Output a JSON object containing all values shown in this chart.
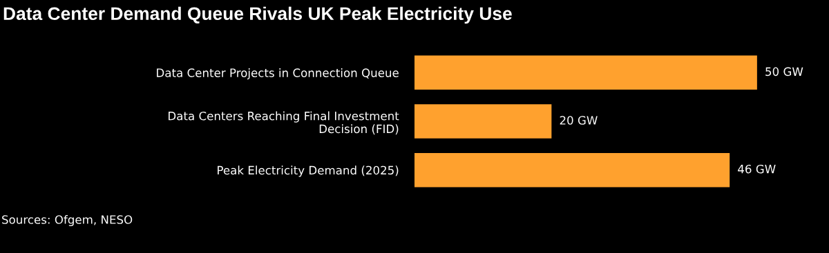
{
  "chart_data": {
    "type": "bar",
    "orientation": "horizontal",
    "title": "Data Center Demand Queue Rivals UK Peak Electricity Use",
    "categories": [
      "Data Center Projects in Connection Queue",
      "Data Centers Reaching Final Investment\nDecision (FID)",
      "Peak Electricity Demand (2025)"
    ],
    "values": [
      50,
      20,
      46
    ],
    "value_labels": [
      "50 GW",
      "20 GW",
      "46 GW"
    ],
    "color": "#ffa12e",
    "annotations": [
      "Sources: Ofgem, NESO"
    ],
    "grid": false,
    "legend": false
  }
}
